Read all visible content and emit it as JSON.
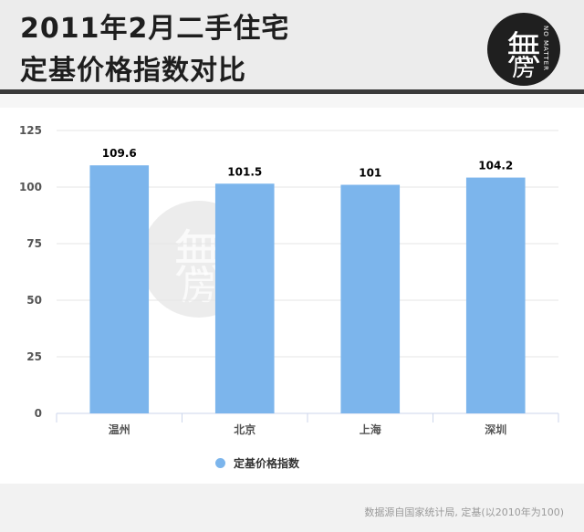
{
  "header": {
    "title_line1": "2011年2月二手住宅",
    "title_line2": "定基价格指数对比",
    "logo": {
      "glyph_top": "無",
      "glyph_bottom": "房",
      "small_text": "NO MATTER"
    }
  },
  "watermark": {
    "glyph_top": "無",
    "glyph_bottom": "房"
  },
  "source": "数据源自国家统计局, 定基(以2010年为100)",
  "colors": {
    "bar": "#7cb5ec",
    "grid": "#e6e6e6",
    "axis": "#ccd6eb"
  },
  "chart_data": {
    "type": "bar",
    "categories": [
      "温州",
      "北京",
      "上海",
      "深圳"
    ],
    "series": [
      {
        "name": "定基价格指数",
        "values": [
          109.6,
          101.5,
          101,
          104.2
        ]
      }
    ],
    "data_labels": [
      "109.6",
      "101.5",
      "101",
      "104.2"
    ],
    "ylim": [
      0,
      125
    ],
    "yticks": [
      0,
      25,
      50,
      75,
      100,
      125
    ],
    "grid": true,
    "legend": "bottom-center",
    "title": "2011年2月二手住宅定基价格指数对比",
    "xlabel": "",
    "ylabel": ""
  }
}
